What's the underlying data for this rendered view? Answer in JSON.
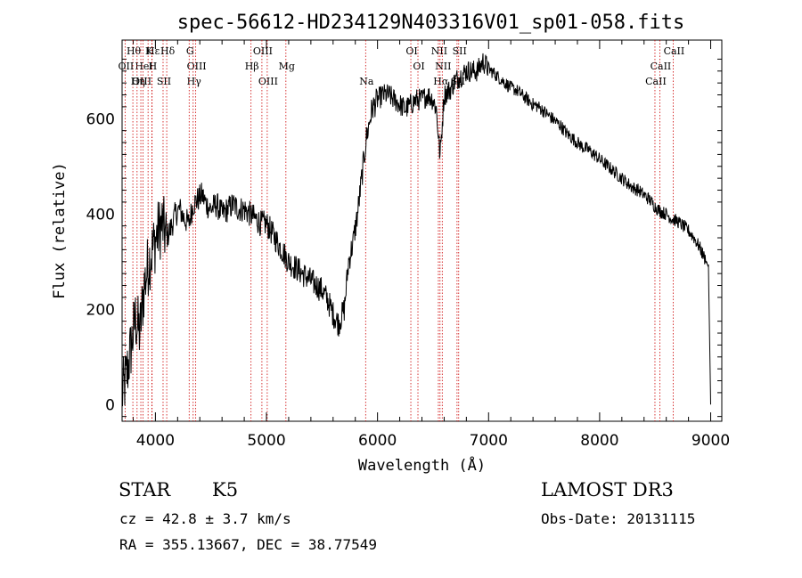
{
  "chart_data": {
    "type": "line",
    "title": "spec-56612-HD234129N403316V01_sp01-058.fits",
    "xlabel": "Wavelength (Å)",
    "ylabel": "Flux (relative)",
    "xlim": [
      3700,
      9100
    ],
    "ylim": [
      -35,
      765
    ],
    "xticks": [
      4000,
      5000,
      6000,
      7000,
      8000,
      9000
    ],
    "yticks": [
      0,
      200,
      400,
      600
    ],
    "grid": false,
    "series": [
      {
        "name": "spectrum",
        "x": [
          3700,
          3740,
          3780,
          3820,
          3860,
          3900,
          3940,
          3980,
          4020,
          4060,
          4100,
          4140,
          4180,
          4220,
          4260,
          4300,
          4340,
          4380,
          4420,
          4460,
          4500,
          4550,
          4600,
          4650,
          4700,
          4750,
          4800,
          4850,
          4900,
          4950,
          5000,
          5050,
          5100,
          5150,
          5200,
          5250,
          5300,
          5350,
          5400,
          5450,
          5500,
          5550,
          5600,
          5650,
          5700,
          5740,
          5780,
          5820,
          5860,
          5900,
          5950,
          6000,
          6050,
          6100,
          6150,
          6200,
          6250,
          6300,
          6350,
          6400,
          6450,
          6500,
          6530,
          6563,
          6600,
          6650,
          6700,
          6750,
          6800,
          6850,
          6900,
          6950,
          7000,
          7050,
          7100,
          7150,
          7200,
          7250,
          7300,
          7350,
          7400,
          7450,
          7500,
          7550,
          7600,
          7650,
          7700,
          7750,
          7800,
          7850,
          7900,
          7950,
          8000,
          8050,
          8100,
          8150,
          8200,
          8250,
          8300,
          8350,
          8400,
          8450,
          8500,
          8550,
          8600,
          8650,
          8700,
          8750,
          8800,
          8850,
          8900,
          8950,
          8980,
          9000
        ],
        "y": [
          20,
          60,
          120,
          180,
          150,
          250,
          300,
          330,
          360,
          380,
          350,
          370,
          400,
          410,
          390,
          380,
          420,
          430,
          440,
          420,
          410,
          420,
          400,
          410,
          420,
          410,
          410,
          400,
          390,
          380,
          380,
          360,
          340,
          320,
          300,
          290,
          280,
          270,
          260,
          250,
          240,
          220,
          190,
          170,
          200,
          300,
          340,
          400,
          480,
          560,
          620,
          640,
          650,
          650,
          640,
          630,
          620,
          630,
          640,
          640,
          650,
          640,
          620,
          520,
          650,
          660,
          680,
          690,
          700,
          700,
          700,
          720,
          705,
          695,
          685,
          675,
          665,
          660,
          650,
          640,
          630,
          625,
          615,
          605,
          595,
          585,
          570,
          560,
          550,
          540,
          535,
          525,
          515,
          505,
          495,
          485,
          475,
          465,
          455,
          450,
          440,
          430,
          415,
          405,
          400,
          390,
          385,
          375,
          365,
          350,
          330,
          305,
          290,
          0
        ]
      }
    ],
    "lines": [
      {
        "label": "Hθ",
        "wl": 3797
      },
      {
        "label": "OII",
        "wl": 3727
      },
      {
        "label": "OIII",
        "wl": 3869
      },
      {
        "label": "K",
        "wl": 3934
      },
      {
        "label": "HeI",
        "wl": 3889
      },
      {
        "label": "Hη",
        "wl": 3835
      },
      {
        "label": "Hε",
        "wl": 3970
      },
      {
        "label": "H",
        "wl": 3968
      },
      {
        "label": "SII",
        "wl": 4069
      },
      {
        "label": "Hδ",
        "wl": 4102
      },
      {
        "label": "OIII",
        "wl": 4363
      },
      {
        "label": "Hγ",
        "wl": 4340
      },
      {
        "label": "G",
        "wl": 4304
      },
      {
        "label": "Hβ",
        "wl": 4861
      },
      {
        "label": "OIII",
        "wl": 5007
      },
      {
        "label": "OIII",
        "wl": 4959
      },
      {
        "label": "Mg",
        "wl": 5175
      },
      {
        "label": "Na",
        "wl": 5893
      },
      {
        "label": "OI",
        "wl": 6300
      },
      {
        "label": "OI",
        "wl": 6364
      },
      {
        "label": "Hα",
        "wl": 6563
      },
      {
        "label": "NII",
        "wl": 6548
      },
      {
        "label": "NII",
        "wl": 6583
      },
      {
        "label": "SII",
        "wl": 6716
      },
      {
        "label": "SII",
        "wl": 6731
      },
      {
        "label": "CaII",
        "wl": 8542
      },
      {
        "label": "CaII",
        "wl": 8498
      },
      {
        "label": "CaII",
        "wl": 8662
      }
    ]
  },
  "info": {
    "object_class": "STAR",
    "subclass": "K5",
    "survey": "LAMOST DR3",
    "cz": "cz = 42.8 ± 3.7 km/s",
    "obs_date": "Obs-Date: 20131115",
    "coords": "RA = 355.13667, DEC =  38.77549"
  },
  "colors": {
    "line_marker": "#cc0000",
    "spectrum": "#000000",
    "axes": "#000000"
  }
}
